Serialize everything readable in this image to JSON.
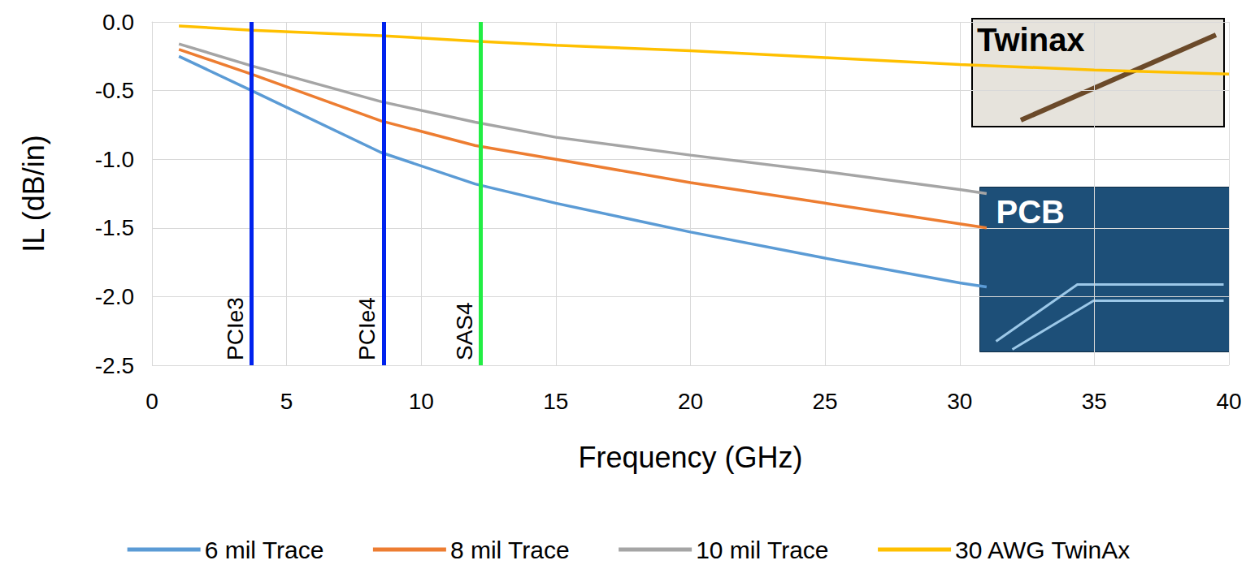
{
  "chart_data": {
    "type": "line",
    "x_label": "Frequency (GHz)",
    "y_label": "IL (dB/in)",
    "xlim": [
      0,
      40
    ],
    "xticks": [
      0,
      5,
      10,
      15,
      20,
      25,
      30,
      35,
      40
    ],
    "ylim": [
      -2.5,
      0
    ],
    "yticks": [
      {
        "value": -2.5,
        "label": "-2.5"
      },
      {
        "value": -2,
        "label": "-2.0"
      },
      {
        "value": -1.5,
        "label": "-1.5"
      },
      {
        "value": -1,
        "label": "-1.0"
      },
      {
        "value": -0.5,
        "label": "-0.5"
      },
      {
        "value": 0,
        "label": "0.0"
      }
    ],
    "grid": true,
    "legend": "bottom",
    "series": [
      {
        "name": "6 mil Trace",
        "color": "#5b9bd5",
        "x": [
          1,
          3.7,
          8.5,
          12,
          15,
          20,
          25,
          30,
          31
        ],
        "values": [
          -0.25,
          -0.5,
          -0.95,
          -1.18,
          -1.32,
          -1.53,
          -1.72,
          -1.9,
          -1.93
        ]
      },
      {
        "name": "8 mil Trace",
        "color": "#ed7d31",
        "x": [
          1,
          3.7,
          8.5,
          12,
          15,
          20,
          25,
          30,
          31
        ],
        "values": [
          -0.2,
          -0.38,
          -0.72,
          -0.9,
          -1.0,
          -1.17,
          -1.32,
          -1.47,
          -1.5
        ]
      },
      {
        "name": "10 mil Trace",
        "color": "#a5a5a5",
        "x": [
          1,
          3.7,
          8.5,
          12,
          15,
          20,
          25,
          30,
          31
        ],
        "values": [
          -0.16,
          -0.32,
          -0.58,
          -0.73,
          -0.84,
          -0.97,
          -1.09,
          -1.22,
          -1.25
        ]
      },
      {
        "name": "30 AWG TwinAx",
        "color": "#ffc000",
        "x": [
          1,
          3.7,
          8.5,
          12,
          15,
          20,
          25,
          30,
          35,
          40
        ],
        "values": [
          -0.03,
          -0.06,
          -0.1,
          -0.14,
          -0.17,
          -0.21,
          -0.26,
          -0.31,
          -0.35,
          -0.38
        ]
      }
    ],
    "annotations": [
      {
        "label": "PCIe3",
        "x": 3.7,
        "color": "#0022ee"
      },
      {
        "label": "PCIe4",
        "x": 8.6,
        "color": "#0022ee"
      },
      {
        "label": "SAS4",
        "x": 12.2,
        "color": "#22ee44"
      }
    ],
    "image_labels": [
      "Twinax",
      "PCB"
    ]
  }
}
